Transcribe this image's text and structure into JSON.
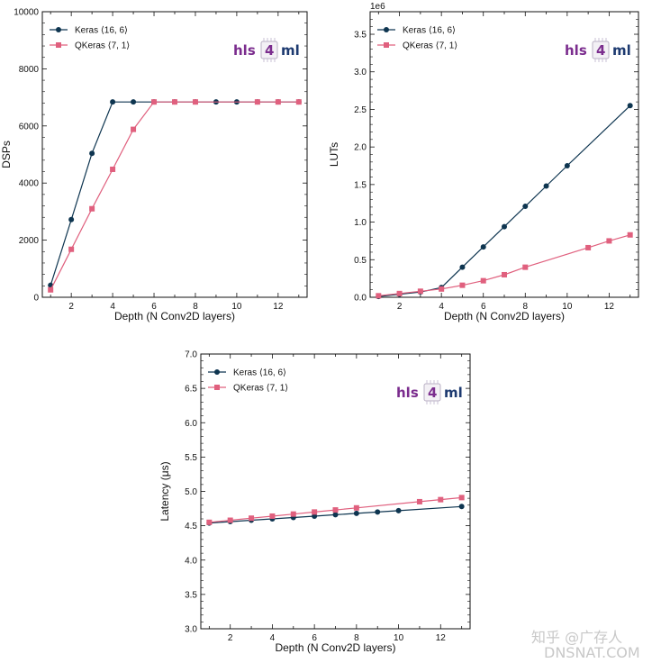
{
  "colors": {
    "keras": "#0e3550",
    "qkeras": "#e0607e",
    "logo_purple": "#7b2d8e",
    "logo_navy": "#1d3a70",
    "axis": "#111111",
    "watermark": "#c8c8c8"
  },
  "logo": {
    "left": "hls",
    "box": "4",
    "right": "ml"
  },
  "watermark": "知乎 @广存人",
  "watermark2": "DNSNAT.COM",
  "chart_data": [
    {
      "type": "line",
      "title": "",
      "xlabel": "Depth (N Conv2D layers)",
      "ylabel": "DSPs",
      "xlim": [
        0.6,
        13.4
      ],
      "ylim": [
        0,
        10000
      ],
      "xticks": [
        2,
        4,
        6,
        8,
        10,
        12
      ],
      "yticks": [
        0,
        2000,
        4000,
        6000,
        8000,
        10000
      ],
      "ytick_labels": [
        "0",
        "2000",
        "4000",
        "6000",
        "8000",
        "10000"
      ],
      "scale_label": "",
      "legend_position": "top-left",
      "grid": false,
      "series": [
        {
          "name": "Keras ⟨16, 6⟩",
          "marker": "circle",
          "x": [
            1,
            2,
            3,
            4,
            5,
            6,
            7,
            8,
            9,
            10,
            11,
            12,
            13
          ],
          "y": [
            420,
            2720,
            5040,
            6840,
            6840,
            6840,
            6840,
            6840,
            6840,
            6840,
            6840,
            6840,
            6840
          ]
        },
        {
          "name": "QKeras ⟨7, 1⟩",
          "marker": "square",
          "x": [
            1,
            2,
            3,
            4,
            5,
            6,
            7,
            8,
            11,
            12,
            13
          ],
          "y": [
            260,
            1680,
            3100,
            4480,
            5880,
            6840,
            6840,
            6840,
            6840,
            6840,
            6840
          ]
        }
      ]
    },
    {
      "type": "line",
      "title": "",
      "xlabel": "Depth (N Conv2D layers)",
      "ylabel": "LUTs",
      "xlim": [
        0.6,
        13.4
      ],
      "ylim": [
        0,
        3.8
      ],
      "xticks": [
        2,
        4,
        6,
        8,
        10,
        12
      ],
      "yticks": [
        0,
        0.5,
        1.0,
        1.5,
        2.0,
        2.5,
        3.0,
        3.5
      ],
      "ytick_labels": [
        "0.0",
        "0.5",
        "1.0",
        "1.5",
        "2.0",
        "2.5",
        "3.0",
        "3.5"
      ],
      "scale_label": "1e6",
      "legend_position": "top-left",
      "grid": false,
      "series": [
        {
          "name": "Keras ⟨16, 6⟩",
          "marker": "circle",
          "x": [
            1,
            2,
            3,
            4,
            5,
            6,
            7,
            8,
            9,
            10,
            13
          ],
          "y": [
            0.01,
            0.04,
            0.07,
            0.13,
            0.4,
            0.67,
            0.94,
            1.21,
            1.48,
            1.75,
            2.55
          ]
        },
        {
          "name": "QKeras ⟨7, 1⟩",
          "marker": "square",
          "x": [
            1,
            2,
            3,
            4,
            5,
            6,
            7,
            8,
            11,
            12,
            13
          ],
          "y": [
            0.02,
            0.05,
            0.08,
            0.11,
            0.16,
            0.22,
            0.3,
            0.4,
            0.66,
            0.75,
            0.83
          ]
        }
      ]
    },
    {
      "type": "line",
      "title": "",
      "xlabel": "Depth (N Conv2D layers)",
      "ylabel": "Latency (μs)",
      "xlim": [
        0.6,
        13.4
      ],
      "ylim": [
        3.0,
        7.0
      ],
      "xticks": [
        2,
        4,
        6,
        8,
        10,
        12
      ],
      "yticks": [
        3.0,
        3.5,
        4.0,
        4.5,
        5.0,
        5.5,
        6.0,
        6.5,
        7.0
      ],
      "ytick_labels": [
        "3.0",
        "3.5",
        "4.0",
        "4.5",
        "5.0",
        "5.5",
        "6.0",
        "6.5",
        "7.0"
      ],
      "scale_label": "",
      "legend_position": "top-left",
      "grid": false,
      "series": [
        {
          "name": "Keras ⟨16, 6⟩",
          "marker": "circle",
          "x": [
            1,
            2,
            3,
            4,
            5,
            6,
            7,
            8,
            9,
            10,
            13
          ],
          "y": [
            4.54,
            4.56,
            4.58,
            4.6,
            4.62,
            4.64,
            4.66,
            4.68,
            4.7,
            4.72,
            4.78
          ]
        },
        {
          "name": "QKeras ⟨7, 1⟩",
          "marker": "square",
          "x": [
            1,
            2,
            3,
            4,
            5,
            6,
            7,
            8,
            11,
            12,
            13
          ],
          "y": [
            4.55,
            4.58,
            4.61,
            4.64,
            4.67,
            4.7,
            4.73,
            4.76,
            4.85,
            4.88,
            4.91
          ]
        }
      ]
    }
  ]
}
